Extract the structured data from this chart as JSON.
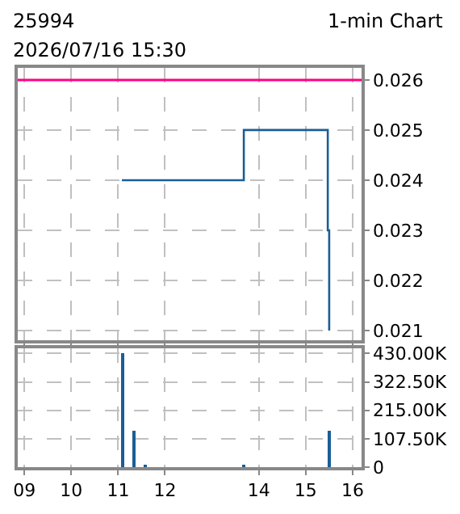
{
  "chart_data": [
    {
      "type": "step",
      "title": "25994",
      "annotations": [
        "1-min Chart",
        "2026/07/16 15:30"
      ],
      "x": [
        11.08,
        13.68,
        15.47,
        15.5
      ],
      "series": [
        {
          "color": "#1a5e96",
          "values": [
            0.024,
            0.025,
            0.023,
            0.021
          ]
        }
      ],
      "xlim": [
        8.86,
        16.19
      ],
      "xticks": [
        9,
        10,
        11,
        12,
        14,
        15,
        16
      ],
      "ylim": [
        0.0208,
        0.02624
      ],
      "yticks": [
        0.021,
        0.022,
        0.023,
        0.024,
        0.025,
        0.026
      ],
      "ref_lines": [
        {
          "axis": "y",
          "value": 0.026,
          "color": "#ff0080"
        }
      ],
      "grid": true,
      "tick_labels": "y"
    },
    {
      "type": "bar",
      "x": [
        11.1,
        11.33,
        11.58,
        13.68,
        15.5
      ],
      "series": [
        {
          "color": "#1a5e96",
          "values": [
            430000,
            140000,
            12000,
            10000,
            140000
          ]
        }
      ],
      "xlim": [
        8.86,
        16.19
      ],
      "xticks": [
        {
          "value": 9,
          "label": "09"
        },
        10,
        11,
        12,
        14,
        15,
        16
      ],
      "ylim": [
        0,
        450000
      ],
      "yticks": [
        0,
        {
          "value": 107500,
          "label": "107.50K"
        },
        {
          "value": 215000,
          "label": "215.00K"
        },
        {
          "value": 322500,
          "label": "322.50K"
        },
        {
          "value": 430000,
          "label": "430.00K"
        }
      ],
      "grid": true
    }
  ]
}
